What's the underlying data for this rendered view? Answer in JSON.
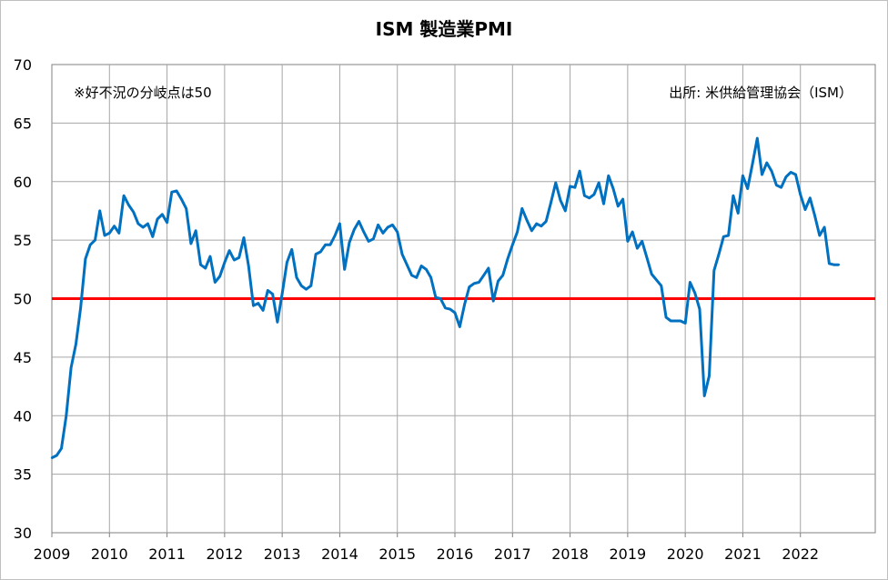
{
  "chart_data": {
    "type": "line",
    "title": "ISM 製造業PMI",
    "note_left": "※好不況の分岐点は50",
    "note_right": "出所: 米供給管理協会（ISM）",
    "xlabel": "",
    "ylabel": "",
    "x_ticks": [
      "2009",
      "2010",
      "2011",
      "2012",
      "2013",
      "2014",
      "2015",
      "2016",
      "2017",
      "2018",
      "2019",
      "2020",
      "2021",
      "2022"
    ],
    "y_ticks": [
      "30",
      "35",
      "40",
      "45",
      "50",
      "55",
      "60",
      "65",
      "70"
    ],
    "xlim": [
      2009,
      2023.3
    ],
    "ylim": [
      30,
      70
    ],
    "grid": true,
    "threshold": 50,
    "threshold_color": "#ff0000",
    "line_color": "#0070c0",
    "series": [
      {
        "start": "2009-01",
        "frequency": "monthly",
        "values": [
          36.4,
          36.6,
          37.2,
          40.0,
          44.1,
          46.1,
          49.2,
          53.4,
          54.6,
          55.0,
          57.5,
          55.4,
          55.6,
          56.2,
          55.6,
          58.8,
          58.0,
          57.4,
          56.4,
          56.1,
          56.4,
          55.3,
          56.8,
          57.2,
          56.5,
          59.1,
          59.2,
          58.5,
          57.7,
          54.7,
          55.8,
          52.9,
          52.6,
          53.6,
          51.4,
          51.9,
          53.1,
          54.1,
          53.3,
          53.5,
          55.2,
          52.8,
          49.4,
          49.6,
          49.0,
          50.7,
          50.4,
          48.0,
          50.4,
          53.1,
          54.2,
          51.8,
          51.1,
          50.8,
          51.1,
          53.8,
          54.0,
          54.6,
          54.6,
          55.4,
          56.4,
          52.5,
          54.8,
          55.9,
          56.6,
          55.7,
          54.9,
          55.1,
          56.3,
          55.6,
          56.1,
          56.3,
          55.7,
          53.8,
          52.9,
          52.0,
          51.8,
          52.8,
          52.5,
          51.8,
          50.1,
          50.0,
          49.2,
          49.1,
          48.8,
          47.6,
          49.5,
          51.0,
          51.3,
          51.4,
          52.0,
          52.6,
          49.8,
          51.5,
          52.0,
          53.4,
          54.6,
          55.7,
          57.7,
          56.7,
          55.8,
          56.4,
          56.2,
          56.6,
          58.2,
          59.9,
          58.4,
          57.5,
          59.6,
          59.5,
          60.9,
          58.8,
          58.6,
          58.9,
          59.9,
          58.1,
          60.5,
          59.4,
          57.9,
          58.5,
          54.9,
          55.7,
          54.3,
          54.9,
          53.5,
          52.1,
          51.6,
          51.1,
          48.4,
          48.1,
          48.1,
          48.1,
          47.9,
          51.4,
          50.5,
          49.1,
          41.7,
          43.4,
          52.4,
          53.8,
          55.3,
          55.4,
          58.8,
          57.3,
          60.5,
          59.4,
          61.5,
          63.7,
          60.6,
          61.6,
          60.9,
          59.7,
          59.5,
          60.4,
          60.8,
          60.6,
          58.9,
          57.6,
          58.6,
          57.1,
          55.4,
          56.1,
          53.0,
          52.9,
          52.9
        ]
      }
    ]
  }
}
